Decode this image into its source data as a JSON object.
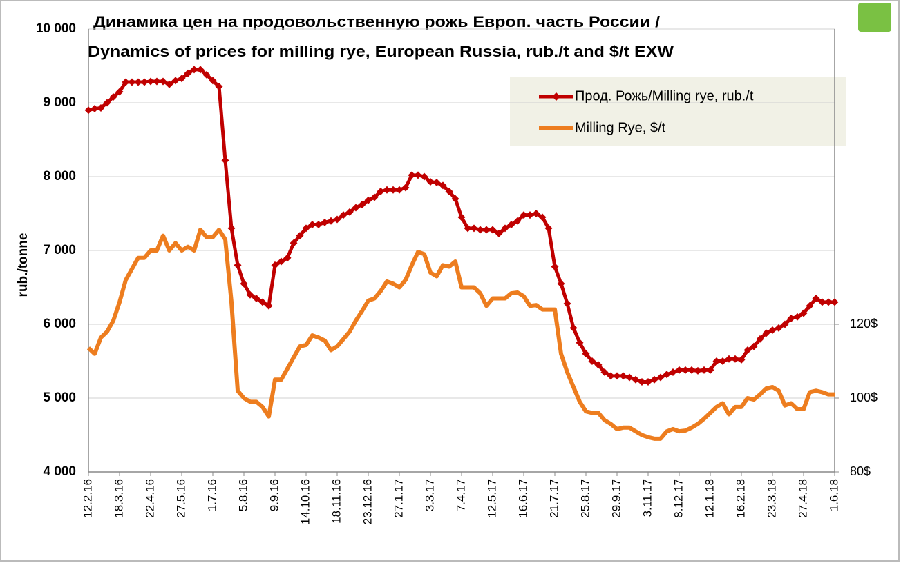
{
  "chart_data": {
    "type": "line",
    "title": [
      "Динамика цен на продовольственную рожь Европ. часть России /",
      "Dynamics of prices for milling rye, European Russia, rub./t and $/t EXW"
    ],
    "y_label": "rub./tonne",
    "categories": [
      "12.2.16",
      null,
      null,
      null,
      null,
      "18.3.16",
      null,
      null,
      null,
      null,
      "22.4.16",
      null,
      null,
      null,
      null,
      "27.5.16",
      null,
      null,
      null,
      null,
      "1.7.16",
      null,
      null,
      null,
      null,
      "5.8.16",
      null,
      null,
      null,
      null,
      "9.9.16",
      null,
      null,
      null,
      null,
      "14.10.16",
      null,
      null,
      null,
      null,
      "18.11.16",
      null,
      null,
      null,
      null,
      "23.12.16",
      null,
      null,
      null,
      null,
      "27.1.17",
      null,
      null,
      null,
      null,
      "3.3.17",
      null,
      null,
      null,
      null,
      "7.4.17",
      null,
      null,
      null,
      null,
      "12.5.17",
      null,
      null,
      null,
      null,
      "16.6.17",
      null,
      null,
      null,
      null,
      "21.7.17",
      null,
      null,
      null,
      null,
      "25.8.17",
      null,
      null,
      null,
      null,
      "29.9.17",
      null,
      null,
      null,
      null,
      "3.11.17",
      null,
      null,
      null,
      null,
      "8.12.17",
      null,
      null,
      null,
      null,
      "12.1.18",
      null,
      null,
      null,
      null,
      "16.2.18",
      null,
      null,
      null,
      null,
      "23.3.18",
      null,
      null,
      null,
      null,
      "27.4.18",
      null,
      null,
      null,
      null,
      "1.6.18"
    ],
    "series": [
      {
        "name": "Прод. Рожь/Milling rye, rub./t",
        "color": "#c00000",
        "marker": "diamond",
        "values": [
          8900,
          8920,
          8930,
          9000,
          9080,
          9150,
          9280,
          9280,
          9280,
          9280,
          9290,
          9290,
          9290,
          9250,
          9300,
          9330,
          9400,
          9450,
          9450,
          9380,
          9300,
          9220,
          8220,
          7300,
          6800,
          6550,
          6400,
          6350,
          6300,
          6250,
          6800,
          6850,
          6900,
          7100,
          7200,
          7300,
          7350,
          7350,
          7380,
          7400,
          7420,
          7480,
          7520,
          7580,
          7620,
          7680,
          7720,
          7800,
          7820,
          7820,
          7820,
          7850,
          8020,
          8020,
          8000,
          7930,
          7920,
          7880,
          7800,
          7700,
          7450,
          7300,
          7300,
          7280,
          7280,
          7280,
          7230,
          7300,
          7350,
          7400,
          7480,
          7480,
          7500,
          7450,
          7300,
          6780,
          6550,
          6280,
          5950,
          5750,
          5600,
          5500,
          5450,
          5350,
          5300,
          5300,
          5300,
          5280,
          5250,
          5220,
          5220,
          5250,
          5280,
          5320,
          5350,
          5380,
          5380,
          5380,
          5370,
          5380,
          5380,
          5500,
          5500,
          5530,
          5530,
          5520,
          5650,
          5700,
          5800,
          5880,
          5920,
          5950,
          6000,
          6080,
          6100,
          6150,
          6250,
          6350,
          6300,
          6300,
          6300
        ]
      },
      {
        "name": "Milling Rye, $/t",
        "color": "#ed7d1f",
        "axis": "y2",
        "values": [
          113.6,
          112,
          116.4,
          118,
          121,
          126,
          132,
          135,
          138,
          138,
          140,
          140,
          144,
          140,
          142,
          140,
          141,
          140,
          145.6,
          143.6,
          143.6,
          145.6,
          143,
          126,
          102,
          100,
          99,
          99,
          97.6,
          95,
          105,
          105,
          108,
          111,
          114,
          114.4,
          117,
          116.4,
          115.6,
          113,
          114,
          116,
          118,
          121,
          123.6,
          126.4,
          127,
          129,
          131.6,
          131,
          130,
          132,
          136,
          139.6,
          139,
          134,
          133,
          136,
          135.6,
          137,
          130,
          130,
          130,
          128.4,
          125,
          127,
          127,
          127,
          128.4,
          128.6,
          127.6,
          125,
          125.2,
          124,
          124,
          124,
          112,
          107,
          103,
          99,
          96.4,
          96,
          96,
          94,
          93,
          91.6,
          92,
          92,
          91,
          90,
          89.4,
          89,
          89,
          91,
          91.6,
          91,
          91.2,
          92,
          93,
          94.4,
          96,
          97.6,
          98.6,
          95.6,
          97.6,
          97.6,
          100,
          99.6,
          101,
          102.6,
          103,
          102,
          98,
          98.6,
          97,
          97,
          101.6,
          102,
          101.6,
          101,
          101
        ]
      }
    ],
    "ylim": [
      4000,
      10000
    ],
    "yticks": [
      {
        "value": 4000,
        "label": "4 000"
      },
      {
        "value": 5000,
        "label": "5 000"
      },
      {
        "value": 6000,
        "label": "6 000"
      },
      {
        "value": 7000,
        "label": "7 000"
      },
      {
        "value": 8000,
        "label": "8 000"
      },
      {
        "value": 9000,
        "label": "9 000"
      },
      {
        "value": 10000,
        "label": "10 000"
      }
    ],
    "y2lim": [
      80,
      200
    ],
    "y2ticks": [
      {
        "value": 80,
        "label": "80$"
      },
      {
        "value": 100,
        "label": "100$"
      },
      {
        "value": 120,
        "label": "120$"
      }
    ],
    "grid": true,
    "legend": "upper right"
  }
}
